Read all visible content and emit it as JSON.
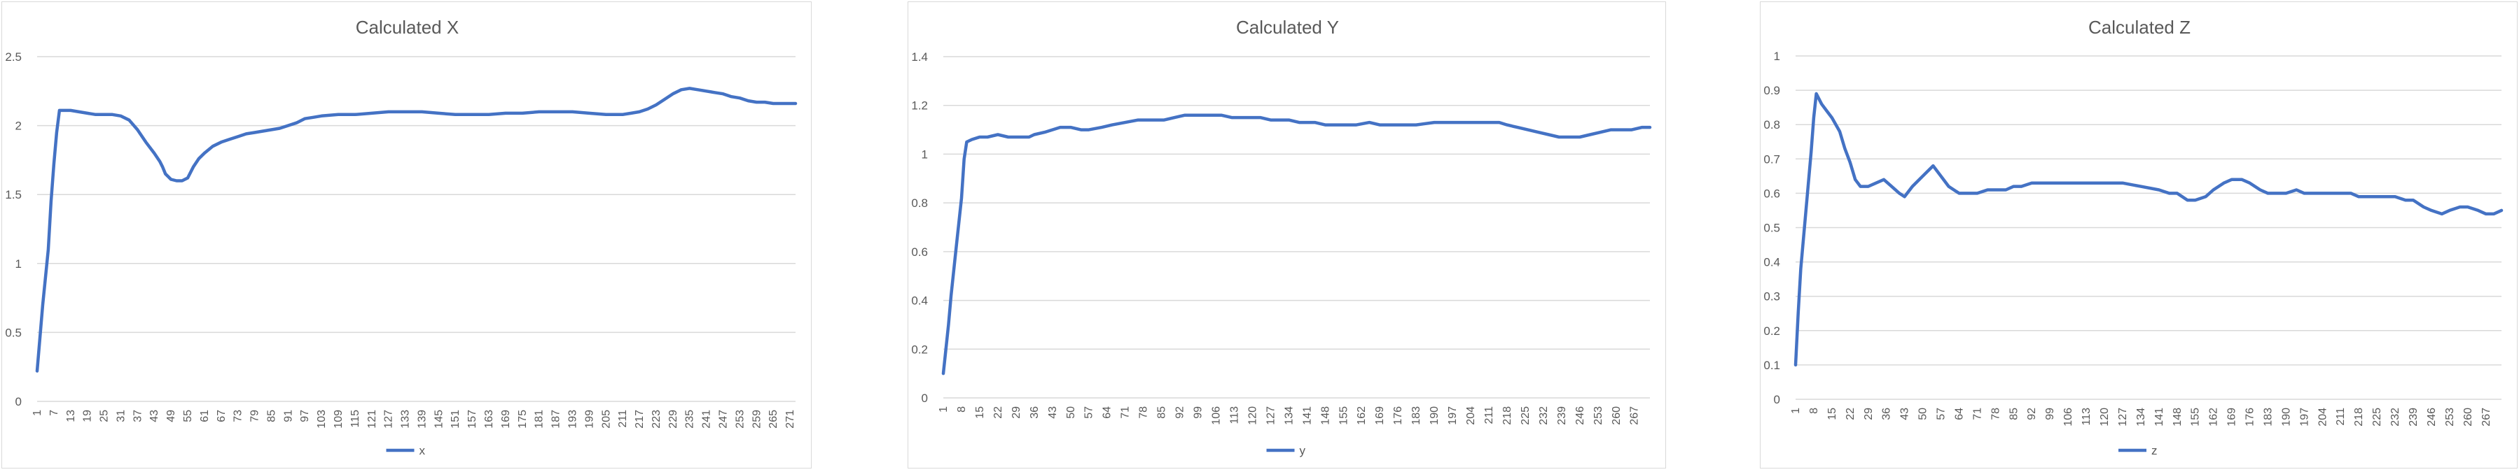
{
  "colors": {
    "line": "#4472c4",
    "grid": "#d9d9d9",
    "axis_text": "#595959",
    "title_text": "#595959"
  },
  "chart_data": [
    {
      "type": "line",
      "title": "Calculated X",
      "xlabel": "",
      "ylabel": "",
      "grid": true,
      "legend": "bottom",
      "ylim": [
        0,
        2.5
      ],
      "y_ticks": [
        "0",
        "0.5",
        "1",
        "1.5",
        "2",
        "2.5"
      ],
      "x_tick_labels": [
        "1",
        "7",
        "13",
        "19",
        "25",
        "31",
        "37",
        "43",
        "49",
        "55",
        "61",
        "67",
        "73",
        "79",
        "85",
        "91",
        "97",
        "103",
        "109",
        "115",
        "121",
        "127",
        "133",
        "139",
        "145",
        "151",
        "157",
        "163",
        "169",
        "175",
        "181",
        "187",
        "193",
        "199",
        "205",
        "211",
        "217",
        "223",
        "229",
        "235",
        "241",
        "247",
        "253",
        "259",
        "265",
        "271"
      ],
      "series": [
        {
          "name": "x",
          "points": [
            [
              1,
              0.22
            ],
            [
              3,
              0.7
            ],
            [
              5,
              1.1
            ],
            [
              6,
              1.45
            ],
            [
              7,
              1.72
            ],
            [
              8,
              1.95
            ],
            [
              9,
              2.11
            ],
            [
              11,
              2.11
            ],
            [
              13,
              2.11
            ],
            [
              16,
              2.1
            ],
            [
              19,
              2.09
            ],
            [
              22,
              2.08
            ],
            [
              25,
              2.08
            ],
            [
              28,
              2.08
            ],
            [
              31,
              2.07
            ],
            [
              34,
              2.04
            ],
            [
              37,
              1.97
            ],
            [
              40,
              1.88
            ],
            [
              43,
              1.8
            ],
            [
              45,
              1.74
            ],
            [
              46,
              1.7
            ],
            [
              47,
              1.65
            ],
            [
              49,
              1.61
            ],
            [
              51,
              1.6
            ],
            [
              53,
              1.6
            ],
            [
              55,
              1.62
            ],
            [
              57,
              1.7
            ],
            [
              59,
              1.76
            ],
            [
              61,
              1.8
            ],
            [
              64,
              1.85
            ],
            [
              67,
              1.88
            ],
            [
              70,
              1.9
            ],
            [
              73,
              1.92
            ],
            [
              76,
              1.94
            ],
            [
              79,
              1.95
            ],
            [
              82,
              1.96
            ],
            [
              85,
              1.97
            ],
            [
              88,
              1.98
            ],
            [
              91,
              2.0
            ],
            [
              94,
              2.02
            ],
            [
              97,
              2.05
            ],
            [
              100,
              2.06
            ],
            [
              103,
              2.07
            ],
            [
              109,
              2.08
            ],
            [
              115,
              2.08
            ],
            [
              121,
              2.09
            ],
            [
              127,
              2.1
            ],
            [
              133,
              2.1
            ],
            [
              139,
              2.1
            ],
            [
              145,
              2.09
            ],
            [
              151,
              2.08
            ],
            [
              157,
              2.08
            ],
            [
              163,
              2.08
            ],
            [
              169,
              2.09
            ],
            [
              175,
              2.09
            ],
            [
              181,
              2.1
            ],
            [
              187,
              2.1
            ],
            [
              193,
              2.1
            ],
            [
              199,
              2.09
            ],
            [
              205,
              2.08
            ],
            [
              211,
              2.08
            ],
            [
              214,
              2.09
            ],
            [
              217,
              2.1
            ],
            [
              220,
              2.12
            ],
            [
              223,
              2.15
            ],
            [
              226,
              2.19
            ],
            [
              229,
              2.23
            ],
            [
              232,
              2.26
            ],
            [
              235,
              2.27
            ],
            [
              238,
              2.26
            ],
            [
              241,
              2.25
            ],
            [
              244,
              2.24
            ],
            [
              247,
              2.23
            ],
            [
              250,
              2.21
            ],
            [
              253,
              2.2
            ],
            [
              256,
              2.18
            ],
            [
              259,
              2.17
            ],
            [
              262,
              2.17
            ],
            [
              265,
              2.16
            ],
            [
              268,
              2.16
            ],
            [
              273,
              2.16
            ]
          ]
        }
      ]
    },
    {
      "type": "line",
      "title": "Calculated Y",
      "xlabel": "",
      "ylabel": "",
      "grid": true,
      "legend": "bottom",
      "ylim": [
        0,
        1.4
      ],
      "y_ticks": [
        "0",
        "0.2",
        "0.4",
        "0.6",
        "0.8",
        "1",
        "1.2",
        "1.4"
      ],
      "x_tick_labels": [
        "1",
        "8",
        "15",
        "22",
        "29",
        "36",
        "43",
        "50",
        "57",
        "64",
        "71",
        "78",
        "85",
        "92",
        "99",
        "106",
        "113",
        "120",
        "127",
        "134",
        "141",
        "148",
        "155",
        "162",
        "169",
        "176",
        "183",
        "190",
        "197",
        "204",
        "211",
        "218",
        "225",
        "232",
        "239",
        "246",
        "253",
        "260",
        "267"
      ],
      "series": [
        {
          "name": "y",
          "points": [
            [
              1,
              0.1
            ],
            [
              2,
              0.2
            ],
            [
              3,
              0.3
            ],
            [
              4,
              0.42
            ],
            [
              6,
              0.62
            ],
            [
              8,
              0.82
            ],
            [
              9,
              0.98
            ],
            [
              10,
              1.05
            ],
            [
              12,
              1.06
            ],
            [
              15,
              1.07
            ],
            [
              18,
              1.07
            ],
            [
              22,
              1.08
            ],
            [
              26,
              1.07
            ],
            [
              30,
              1.07
            ],
            [
              34,
              1.07
            ],
            [
              36,
              1.08
            ],
            [
              40,
              1.09
            ],
            [
              43,
              1.1
            ],
            [
              46,
              1.11
            ],
            [
              50,
              1.11
            ],
            [
              54,
              1.1
            ],
            [
              57,
              1.1
            ],
            [
              62,
              1.11
            ],
            [
              66,
              1.12
            ],
            [
              71,
              1.13
            ],
            [
              76,
              1.14
            ],
            [
              82,
              1.14
            ],
            [
              86,
              1.14
            ],
            [
              90,
              1.15
            ],
            [
              94,
              1.16
            ],
            [
              99,
              1.16
            ],
            [
              104,
              1.16
            ],
            [
              108,
              1.16
            ],
            [
              112,
              1.15
            ],
            [
              118,
              1.15
            ],
            [
              123,
              1.15
            ],
            [
              127,
              1.14
            ],
            [
              134,
              1.14
            ],
            [
              138,
              1.13
            ],
            [
              144,
              1.13
            ],
            [
              148,
              1.12
            ],
            [
              155,
              1.12
            ],
            [
              160,
              1.12
            ],
            [
              165,
              1.13
            ],
            [
              169,
              1.12
            ],
            [
              176,
              1.12
            ],
            [
              183,
              1.12
            ],
            [
              190,
              1.13
            ],
            [
              197,
              1.13
            ],
            [
              204,
              1.13
            ],
            [
              211,
              1.13
            ],
            [
              215,
              1.13
            ],
            [
              218,
              1.12
            ],
            [
              222,
              1.11
            ],
            [
              226,
              1.1
            ],
            [
              230,
              1.09
            ],
            [
              234,
              1.08
            ],
            [
              238,
              1.07
            ],
            [
              242,
              1.07
            ],
            [
              246,
              1.07
            ],
            [
              250,
              1.08
            ],
            [
              254,
              1.09
            ],
            [
              258,
              1.1
            ],
            [
              262,
              1.1
            ],
            [
              266,
              1.1
            ],
            [
              270,
              1.11
            ],
            [
              273,
              1.11
            ]
          ]
        }
      ]
    },
    {
      "type": "line",
      "title": "Calculated Z",
      "xlabel": "",
      "ylabel": "",
      "grid": true,
      "legend": "bottom",
      "ylim": [
        0,
        1
      ],
      "y_ticks": [
        "0",
        "0.1",
        "0.2",
        "0.3",
        "0.4",
        "0.5",
        "0.6",
        "0.7",
        "0.8",
        "0.9",
        "1"
      ],
      "x_tick_labels": [
        "1",
        "8",
        "15",
        "22",
        "29",
        "36",
        "43",
        "50",
        "57",
        "64",
        "71",
        "78",
        "85",
        "92",
        "99",
        "106",
        "113",
        "120",
        "127",
        "134",
        "141",
        "148",
        "155",
        "162",
        "169",
        "176",
        "183",
        "190",
        "197",
        "204",
        "211",
        "218",
        "225",
        "232",
        "239",
        "246",
        "253",
        "260",
        "267"
      ],
      "series": [
        {
          "name": "z",
          "points": [
            [
              1,
              0.1
            ],
            [
              2,
              0.25
            ],
            [
              3,
              0.38
            ],
            [
              5,
              0.55
            ],
            [
              7,
              0.72
            ],
            [
              8,
              0.82
            ],
            [
              9,
              0.89
            ],
            [
              11,
              0.86
            ],
            [
              13,
              0.84
            ],
            [
              15,
              0.82
            ],
            [
              18,
              0.78
            ],
            [
              20,
              0.73
            ],
            [
              22,
              0.69
            ],
            [
              24,
              0.64
            ],
            [
              26,
              0.62
            ],
            [
              29,
              0.62
            ],
            [
              32,
              0.63
            ],
            [
              35,
              0.64
            ],
            [
              38,
              0.62
            ],
            [
              41,
              0.6
            ],
            [
              43,
              0.59
            ],
            [
              46,
              0.62
            ],
            [
              50,
              0.65
            ],
            [
              54,
              0.68
            ],
            [
              57,
              0.65
            ],
            [
              60,
              0.62
            ],
            [
              64,
              0.6
            ],
            [
              68,
              0.6
            ],
            [
              71,
              0.6
            ],
            [
              75,
              0.61
            ],
            [
              78,
              0.61
            ],
            [
              82,
              0.61
            ],
            [
              85,
              0.62
            ],
            [
              88,
              0.62
            ],
            [
              92,
              0.63
            ],
            [
              96,
              0.63
            ],
            [
              99,
              0.63
            ],
            [
              106,
              0.63
            ],
            [
              113,
              0.63
            ],
            [
              120,
              0.63
            ],
            [
              127,
              0.63
            ],
            [
              134,
              0.62
            ],
            [
              141,
              0.61
            ],
            [
              145,
              0.6
            ],
            [
              148,
              0.6
            ],
            [
              152,
              0.58
            ],
            [
              155,
              0.58
            ],
            [
              159,
              0.59
            ],
            [
              162,
              0.61
            ],
            [
              166,
              0.63
            ],
            [
              169,
              0.64
            ],
            [
              173,
              0.64
            ],
            [
              176,
              0.63
            ],
            [
              180,
              0.61
            ],
            [
              183,
              0.6
            ],
            [
              187,
              0.6
            ],
            [
              190,
              0.6
            ],
            [
              194,
              0.61
            ],
            [
              197,
              0.6
            ],
            [
              201,
              0.6
            ],
            [
              204,
              0.6
            ],
            [
              208,
              0.6
            ],
            [
              211,
              0.6
            ],
            [
              215,
              0.6
            ],
            [
              218,
              0.59
            ],
            [
              222,
              0.59
            ],
            [
              225,
              0.59
            ],
            [
              229,
              0.59
            ],
            [
              232,
              0.59
            ],
            [
              236,
              0.58
            ],
            [
              239,
              0.58
            ],
            [
              243,
              0.56
            ],
            [
              246,
              0.55
            ],
            [
              250,
              0.54
            ],
            [
              253,
              0.55
            ],
            [
              257,
              0.56
            ],
            [
              260,
              0.56
            ],
            [
              264,
              0.55
            ],
            [
              267,
              0.54
            ],
            [
              270,
              0.54
            ],
            [
              273,
              0.55
            ]
          ]
        }
      ]
    }
  ]
}
